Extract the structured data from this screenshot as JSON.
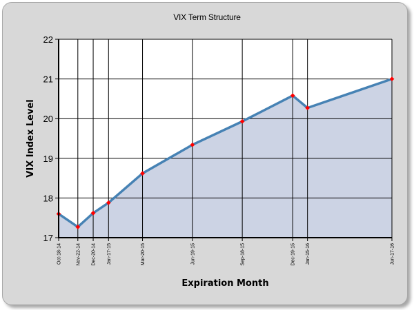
{
  "chart_data": {
    "type": "area",
    "title": "VIX Term Structure",
    "xlabel": "Expiration Month",
    "ylabel": "VIX Index Level",
    "ylim": [
      17,
      22
    ],
    "yticks": [
      "17",
      "18",
      "19",
      "20",
      "21",
      "22"
    ],
    "grid": true,
    "x": [
      "2014-10-18",
      "2014-11-22",
      "2014-12-20",
      "2015-01-17",
      "2015-03-20",
      "2015-06-19",
      "2015-09-18",
      "2015-12-19",
      "2016-01-15",
      "2016-06-17"
    ],
    "xticklabels": [
      "Oct-18-14",
      "Nov-22-14",
      "Dec-20-14",
      "Jan-17-15",
      "Mar-20-15",
      "Jun-19-15",
      "Sep-18-15",
      "Dec-19-15",
      "Jan-15-16",
      "Jun-17-16"
    ],
    "values": [
      17.6,
      17.27,
      17.62,
      17.88,
      18.62,
      19.34,
      19.93,
      20.58,
      20.27,
      21.0
    ],
    "colors": {
      "line": "#4682b4",
      "fill": "#ccd3e4",
      "marker": "#ff0000",
      "background": "#d8d8d8"
    }
  }
}
